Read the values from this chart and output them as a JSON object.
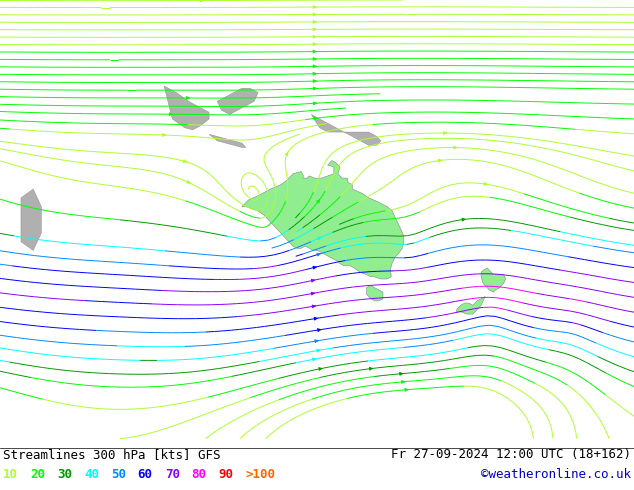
{
  "title_left": "Streamlines 300 hPa [kts] GFS",
  "title_right": "Fr 27-09-2024 12:00 UTC (18+162)",
  "credit": "©weatheronline.co.uk",
  "legend_values": [
    "10",
    "20",
    "30",
    "40",
    "50",
    "60",
    "70",
    "80",
    "90",
    ">100"
  ],
  "legend_colors": [
    "#adff2f",
    "#00ff00",
    "#009900",
    "#00ffff",
    "#0088ff",
    "#0000ff",
    "#8800ff",
    "#ff00ff",
    "#ff0000",
    "#ff6600"
  ],
  "bg_color": "#b4b4b4",
  "ocean_color": "#c8c8c8",
  "land_color": "#b0b0b0",
  "australia_color": "#90ee90",
  "text_color": "#000000",
  "title_fontsize": 9,
  "legend_fontsize": 9,
  "credit_color": "#0000cc",
  "bottom_bar_color": "#ffffff",
  "lon_min": 55,
  "lon_max": 210,
  "lat_min": -75,
  "lat_max": 25
}
